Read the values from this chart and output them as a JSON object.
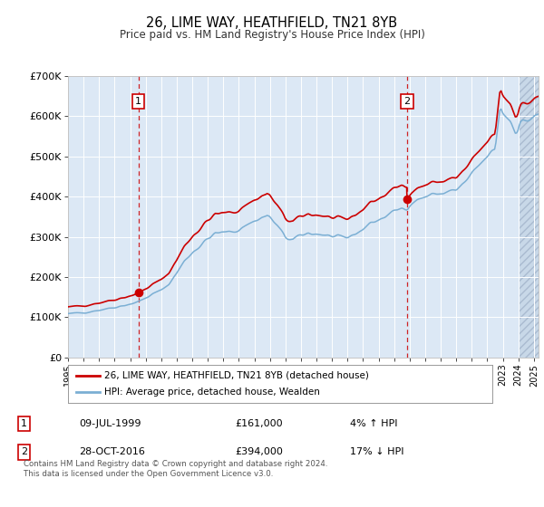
{
  "title": "26, LIME WAY, HEATHFIELD, TN21 8YB",
  "subtitle": "Price paid vs. HM Land Registry's House Price Index (HPI)",
  "ylim": [
    0,
    700000
  ],
  "yticks": [
    0,
    100000,
    200000,
    300000,
    400000,
    500000,
    600000,
    700000
  ],
  "ytick_labels": [
    "£0",
    "£100K",
    "£200K",
    "£300K",
    "£400K",
    "£500K",
    "£600K",
    "£700K"
  ],
  "hpi_color": "#7bafd4",
  "price_color": "#cc0000",
  "sale1_year": 1999.53,
  "sale1_price": 161000,
  "sale2_year": 2016.83,
  "sale2_price": 394000,
  "legend_price_label": "26, LIME WAY, HEATHFIELD, TN21 8YB (detached house)",
  "legend_hpi_label": "HPI: Average price, detached house, Wealden",
  "table_row1": [
    "1",
    "09-JUL-1999",
    "£161,000",
    "4% ↑ HPI"
  ],
  "table_row2": [
    "2",
    "28-OCT-2016",
    "£394,000",
    "17% ↓ HPI"
  ],
  "footnote": "Contains HM Land Registry data © Crown copyright and database right 2024.\nThis data is licensed under the Open Government Licence v3.0.",
  "plot_bg_color": "#dce8f5",
  "xmin": 1995.0,
  "xmax": 2025.3,
  "hatch_start": 2024.08
}
